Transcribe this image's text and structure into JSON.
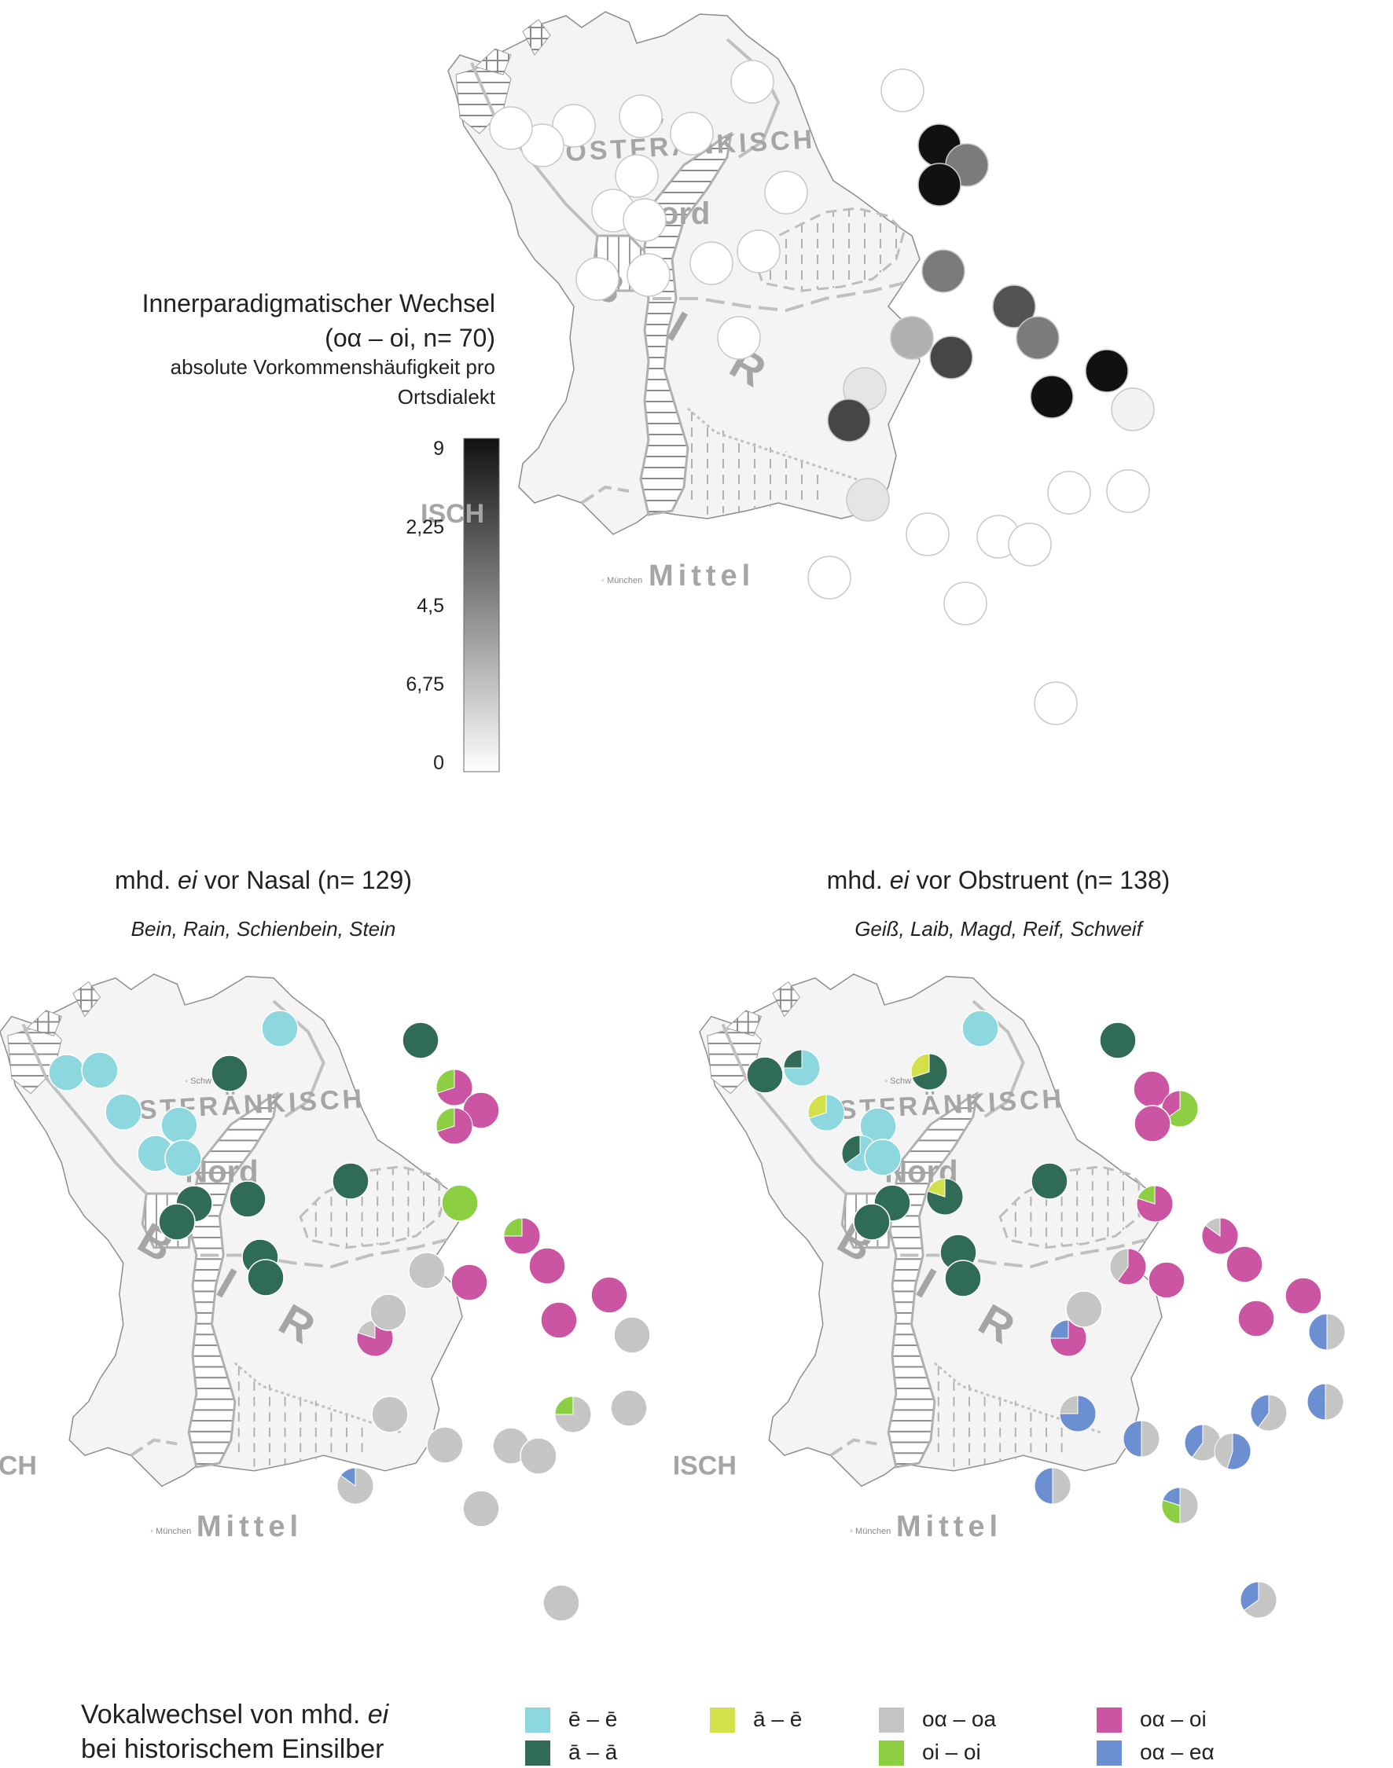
{
  "colors": {
    "e_e": "#8dd8df",
    "a_a": "#2f6b55",
    "a_e": "#d4e04a",
    "oa_oa": "#c5c6c3",
    "oi_oi": "#8ccf43",
    "oa_oi": "#cc55a3",
    "oa_ea": "#6b8fd1",
    "map_line": "#b5b5b5",
    "map_fill": "#f4f4f4"
  },
  "map_labels": {
    "ostfraenkisch": "OSTFRÄNKISCH",
    "nord": "Nord",
    "bair": "B   I   R",
    "mittel": "Mittel",
    "isch": "ISCH",
    "muenchen": "München",
    "schw": "Schw"
  },
  "top_map": {
    "title": "Innerparadigmatischer Wechsel",
    "title_line2": "(oα – oi, n= 70)",
    "subtitle_line1": "absolute Vorkommenshäufigkeit pro",
    "subtitle_line2": "Ortsdialekt",
    "scale_ticks": [
      "9",
      "2,25",
      "4,5",
      "6,75",
      "0"
    ],
    "points": [
      {
        "v": 0
      },
      {
        "v": 0
      },
      {
        "v": 0
      },
      {
        "v": 0
      },
      {
        "v": 0
      },
      {
        "v": 0
      },
      {
        "v": 0
      },
      {
        "v": 0
      },
      {
        "v": 0
      },
      {
        "v": 0
      },
      {
        "v": 0
      },
      {
        "v": 0
      },
      {
        "v": 0
      },
      {
        "v": 0
      },
      {
        "v": 9
      },
      {
        "v": 5
      },
      {
        "v": 9
      },
      {
        "v": 0
      },
      {
        "v": 5
      },
      {
        "v": 6.5
      },
      {
        "v": 3
      },
      {
        "v": 7
      },
      {
        "v": 5
      },
      {
        "v": 1
      },
      {
        "v": 9
      },
      {
        "v": 9
      },
      {
        "v": 7
      },
      {
        "v": 0.5
      },
      {
        "v": 1
      },
      {
        "v": 0
      },
      {
        "v": 0
      },
      {
        "v": 0
      },
      {
        "v": 0
      },
      {
        "v": 0
      },
      {
        "v": 0
      },
      {
        "v": 0
      },
      {
        "v": 0
      },
      {
        "v": 0
      }
    ]
  },
  "map_nasal": {
    "title_pre": "mhd. ",
    "title_em": "ei",
    "title_post": " vor Nasal (n= 129)",
    "words": "Bein, Rain, Schienbein, Stein"
  },
  "map_obstruent": {
    "title_pre": "mhd. ",
    "title_em": "ei",
    "title_post": " vor Obstruent (n= 138)",
    "words": "Geiß, Laib, Magd, Reif, Schweif"
  },
  "footer": {
    "title_pre": "Vokalwechsel von mhd. ",
    "title_em": "ei",
    "title_line2": "bei historischem Einsilber"
  },
  "legend": [
    {
      "key": "e_e",
      "label": "ē – ē"
    },
    {
      "key": "a_a",
      "label": "ā – ā"
    },
    {
      "key": "a_e",
      "label": "ā – ē"
    },
    {
      "key": "oa_oa",
      "label": "oα – oa"
    },
    {
      "key": "oi_oi",
      "label": "oi – oi"
    },
    {
      "key": "oa_oi",
      "label": "oα – oi"
    },
    {
      "key": "oa_ea",
      "label": "oα – eα"
    }
  ]
}
